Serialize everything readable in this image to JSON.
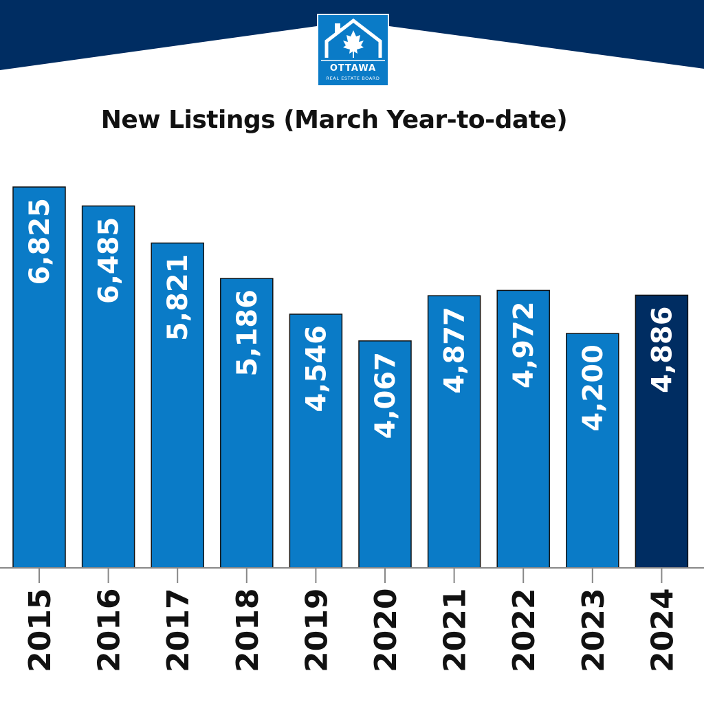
{
  "chart_data": {
    "type": "bar",
    "title": "New Listings (March Year-to-date)",
    "categories": [
      "2015",
      "2016",
      "2017",
      "2018",
      "2019",
      "2020",
      "2021",
      "2022",
      "2023",
      "2024"
    ],
    "values": [
      6825,
      6485,
      5821,
      5186,
      4546,
      4067,
      4877,
      4972,
      4200,
      4886
    ],
    "value_labels": [
      "6,825",
      "6,485",
      "5,821",
      "5,186",
      "4,546",
      "4,067",
      "4,877",
      "4,972",
      "4,200",
      "4,886"
    ],
    "ylim": [
      0,
      7000
    ],
    "xlabel": "",
    "ylabel": "",
    "grid": false,
    "legend": "none",
    "colors": {
      "bar": "#0a7bc7",
      "highlight_bar": "#002d62",
      "highlight_category": "2024",
      "header_band": "#002d62",
      "axis": "#888888",
      "label_text": "#ffffff",
      "category_text": "#111111"
    }
  },
  "logo": {
    "name": "OTTAWA",
    "subtitle": "REAL ESTATE BOARD",
    "icon": "house-maple-leaf-icon"
  }
}
